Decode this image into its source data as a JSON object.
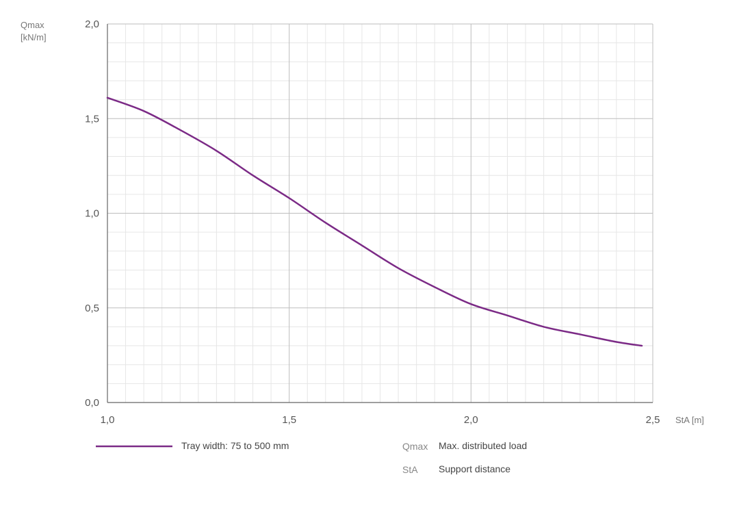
{
  "chart_data": {
    "type": "line",
    "ylabel": [
      "Qmax",
      "[kN/m]"
    ],
    "xlabel": "StA [m]",
    "xlim": [
      1.0,
      2.5
    ],
    "ylim": [
      0.0,
      2.0
    ],
    "x_ticks": [
      "1,0",
      "1,5",
      "2,0",
      "2,5"
    ],
    "y_ticks": [
      "0,0",
      "0,5",
      "1,0",
      "1,5",
      "2,0"
    ],
    "grid": true,
    "series": [
      {
        "name": "Tray width: 75 to 500 mm",
        "color": "#7b2a86",
        "x": [
          1.0,
          1.1,
          1.2,
          1.3,
          1.4,
          1.5,
          1.6,
          1.7,
          1.8,
          1.9,
          2.0,
          2.1,
          2.2,
          2.3,
          2.4,
          2.47
        ],
        "y": [
          1.61,
          1.54,
          1.44,
          1.33,
          1.2,
          1.08,
          0.95,
          0.83,
          0.71,
          0.61,
          0.52,
          0.46,
          0.4,
          0.36,
          0.32,
          0.3
        ]
      }
    ]
  },
  "legend": {
    "definitions": [
      {
        "abbr": "Qmax",
        "text": "Max. distributed load"
      },
      {
        "abbr": "StA",
        "text": "Support distance"
      }
    ]
  }
}
